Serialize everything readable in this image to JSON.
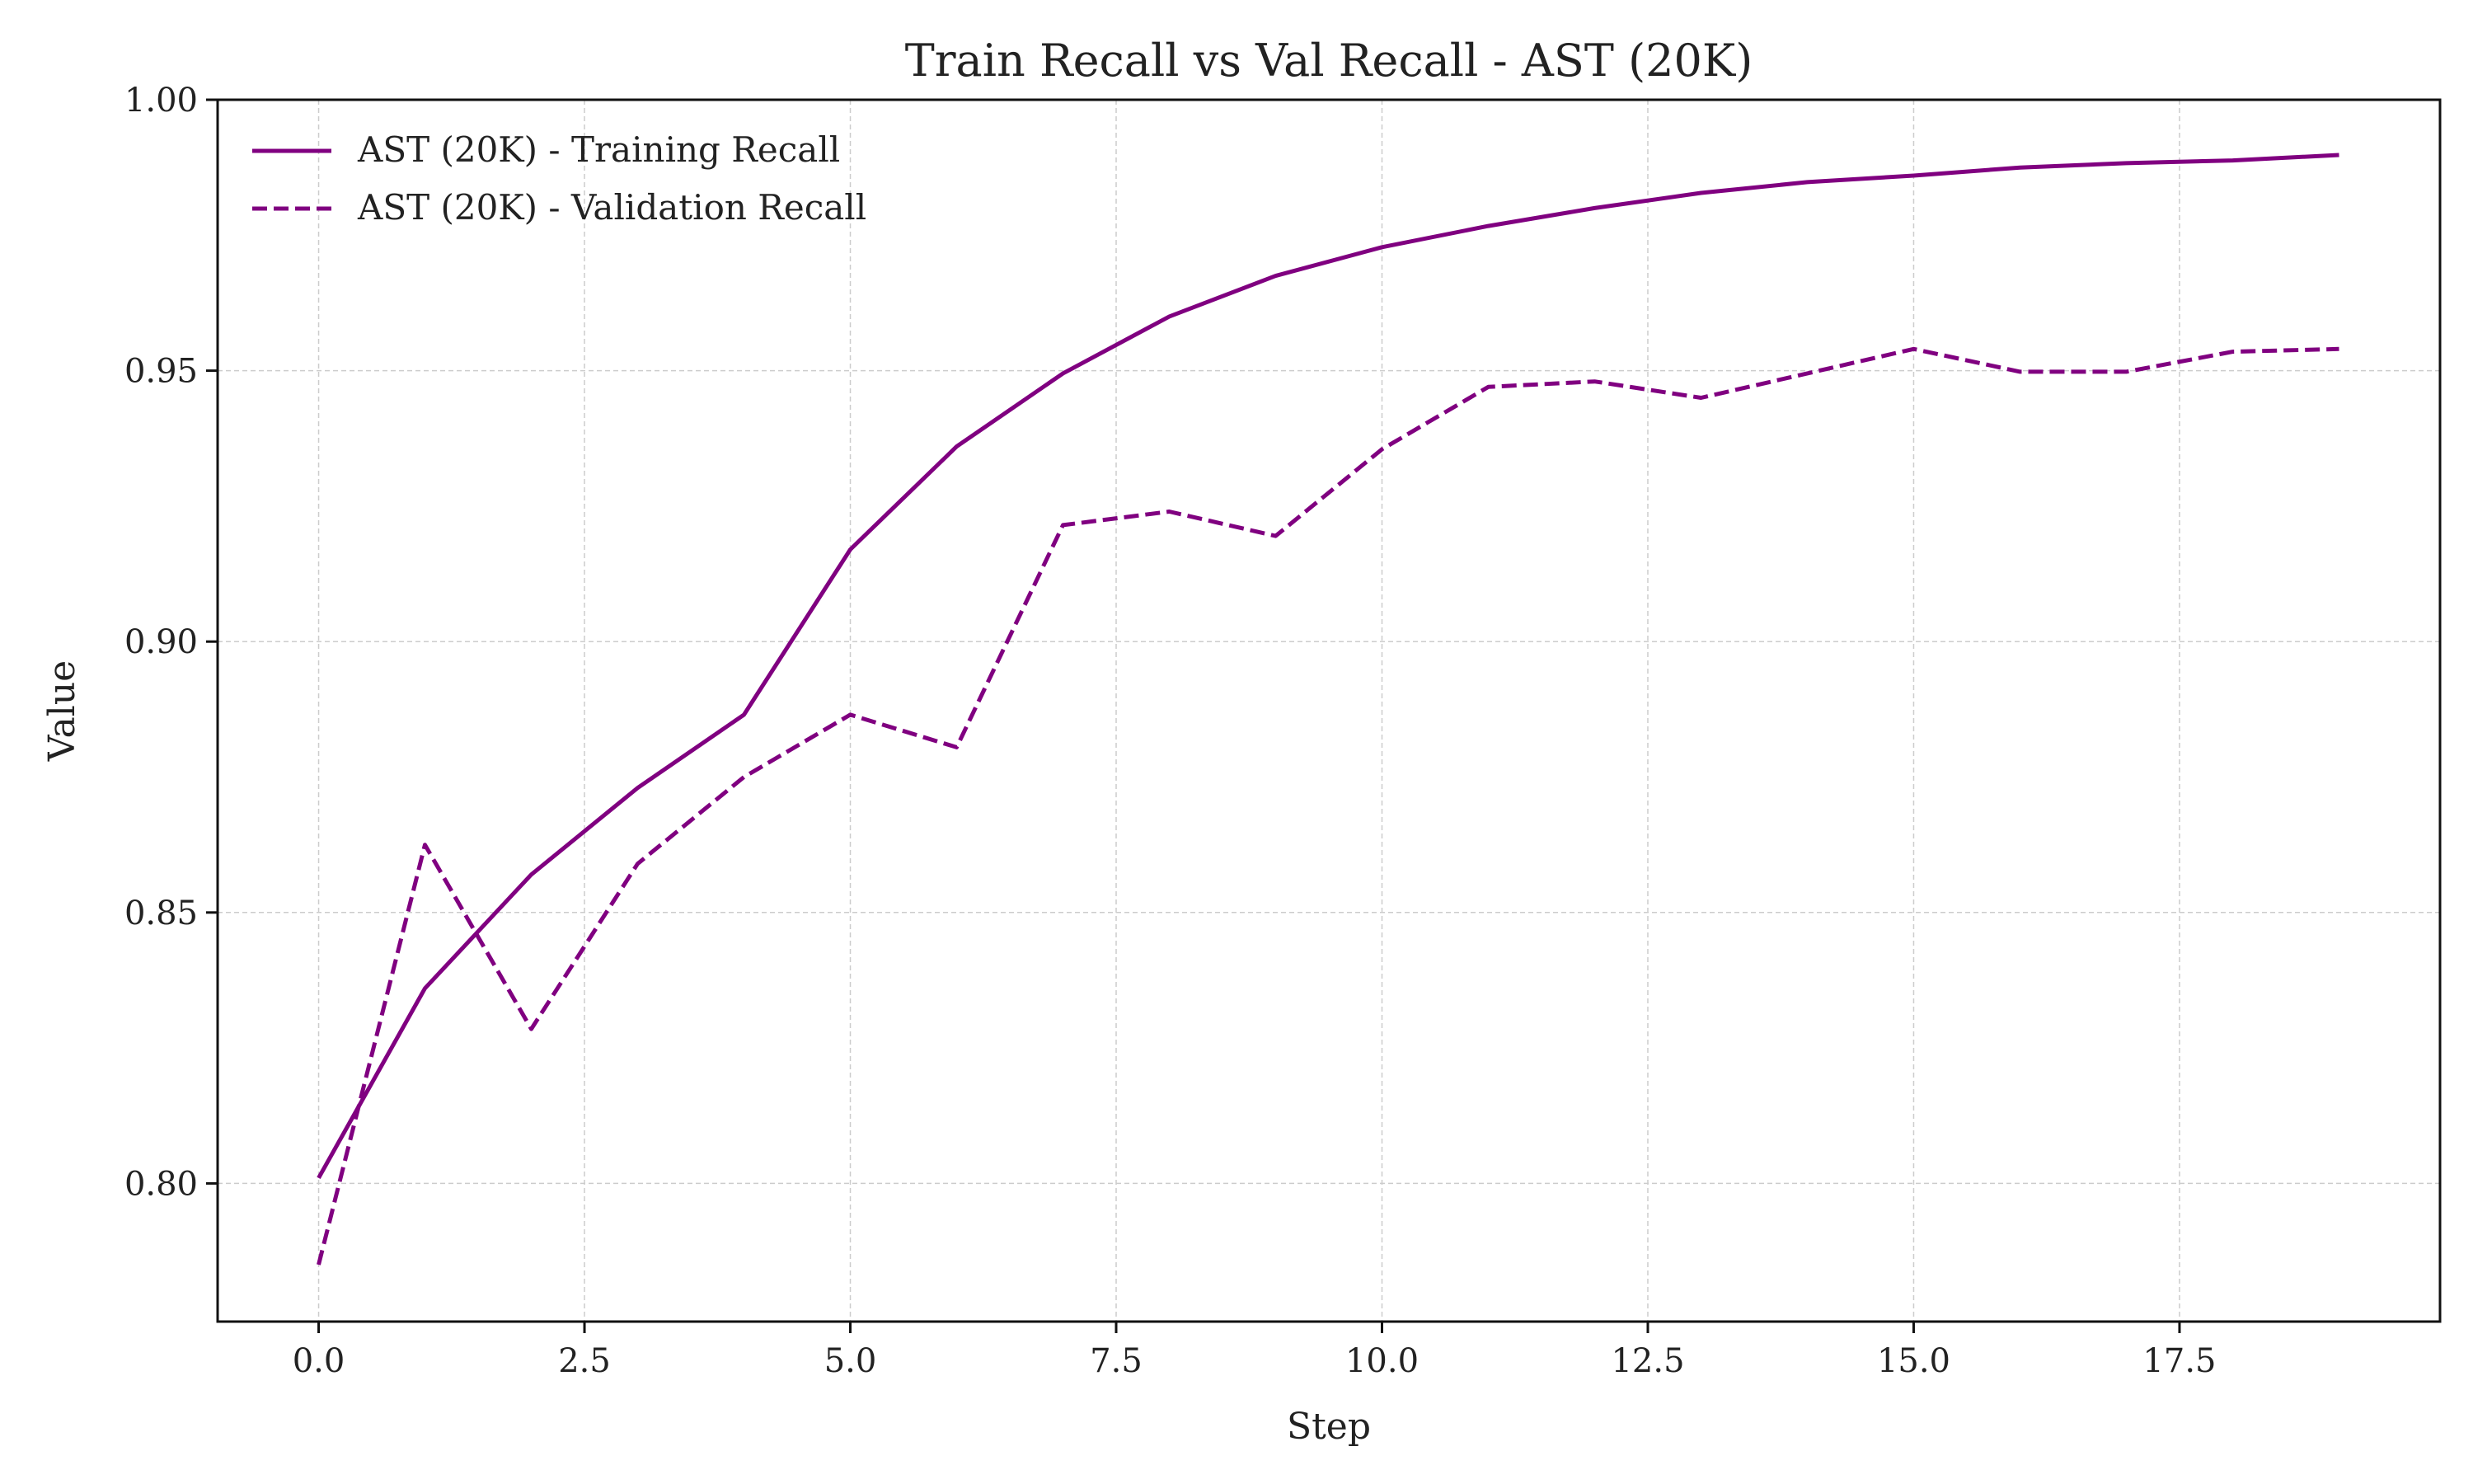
{
  "chart_data": {
    "type": "line",
    "title": "Train Recall vs Val Recall - AST (20K)",
    "xlabel": "Step",
    "ylabel": "Value",
    "xlim": [
      -0.95,
      19.95
    ],
    "ylim": [
      0.7745,
      1.0
    ],
    "xticks": [
      "0.0",
      "2.5",
      "5.0",
      "7.5",
      "10.0",
      "12.5",
      "15.0",
      "17.5"
    ],
    "yticks": [
      "0.80",
      "0.85",
      "0.90",
      "0.95",
      "1.00"
    ],
    "grid": true,
    "legend_position": "top-left",
    "x": [
      0,
      1,
      2,
      3,
      4,
      5,
      6,
      7,
      8,
      9,
      10,
      11,
      12,
      13,
      14,
      15,
      16,
      17,
      18,
      19
    ],
    "series": [
      {
        "name": "AST (20K) - Training Recall",
        "style": "solid",
        "color": "#800080",
        "values": [
          0.801,
          0.836,
          0.857,
          0.873,
          0.8865,
          0.917,
          0.936,
          0.9495,
          0.96,
          0.9675,
          0.9728,
          0.9767,
          0.98,
          0.9828,
          0.9848,
          0.986,
          0.9875,
          0.9883,
          0.9888,
          0.9898
        ]
      },
      {
        "name": "AST (20K) - Validation Recall",
        "style": "dashed",
        "color": "#800080",
        "values": [
          0.785,
          0.8625,
          0.8285,
          0.859,
          0.875,
          0.8865,
          0.8805,
          0.9215,
          0.924,
          0.9195,
          0.9355,
          0.947,
          0.948,
          0.945,
          0.9495,
          0.954,
          0.9498,
          0.9498,
          0.9535,
          0.954
        ]
      }
    ]
  }
}
